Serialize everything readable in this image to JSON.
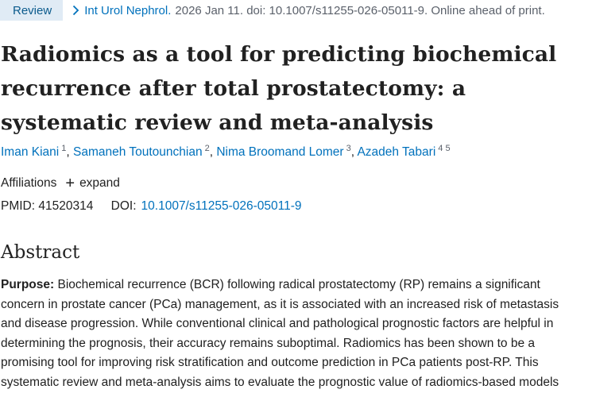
{
  "article_type": "Review",
  "citation": {
    "journal": "Int Urol Nephrol.",
    "details": "2026 Jan 11. doi: 10.1007/s11255-026-05011-9. Online ahead of print."
  },
  "title": "Radiomics as a tool for predicting biochemical recurrence after total prostatectomy: a systematic review and meta-analysis",
  "authors": [
    {
      "name": "Iman Kiani",
      "affiliations": "1"
    },
    {
      "name": "Samaneh Toutounchian",
      "affiliations": "2"
    },
    {
      "name": "Nima Broomand Lomer",
      "affiliations": "3"
    },
    {
      "name": "Azadeh Tabari",
      "affiliations": "4 5"
    }
  ],
  "affiliations": {
    "label": "Affiliations",
    "expand_label": "expand"
  },
  "identifiers": {
    "pmid_label": "PMID:",
    "pmid": "41520314",
    "doi_label": "DOI:",
    "doi": "10.1007/s11255-026-05011-9"
  },
  "abstract": {
    "heading": "Abstract",
    "section_label": "Purpose:",
    "lines": [
      "Biochemical recurrence (BCR) following radical prostatectomy (RP) remains a significant",
      "concern in prostate cancer (PCa) management, as it is associated with an increased risk of metastasis",
      "and disease progression. While conventional clinical and pathological prognostic factors are helpful in",
      "determining the prognosis, their accuracy remains suboptimal. Radiomics has been shown to be a",
      "promising tool for improving risk stratification and outcome prediction in PCa patients post-RP. This",
      "systematic review and meta-analysis aims to evaluate the prognostic value of radiomics-based models"
    ]
  },
  "colors": {
    "link": "#0071bc",
    "badge_bg": "#e0ebf5",
    "badge_text": "#0a5a8c",
    "text": "#212121",
    "muted": "#5b616b"
  }
}
